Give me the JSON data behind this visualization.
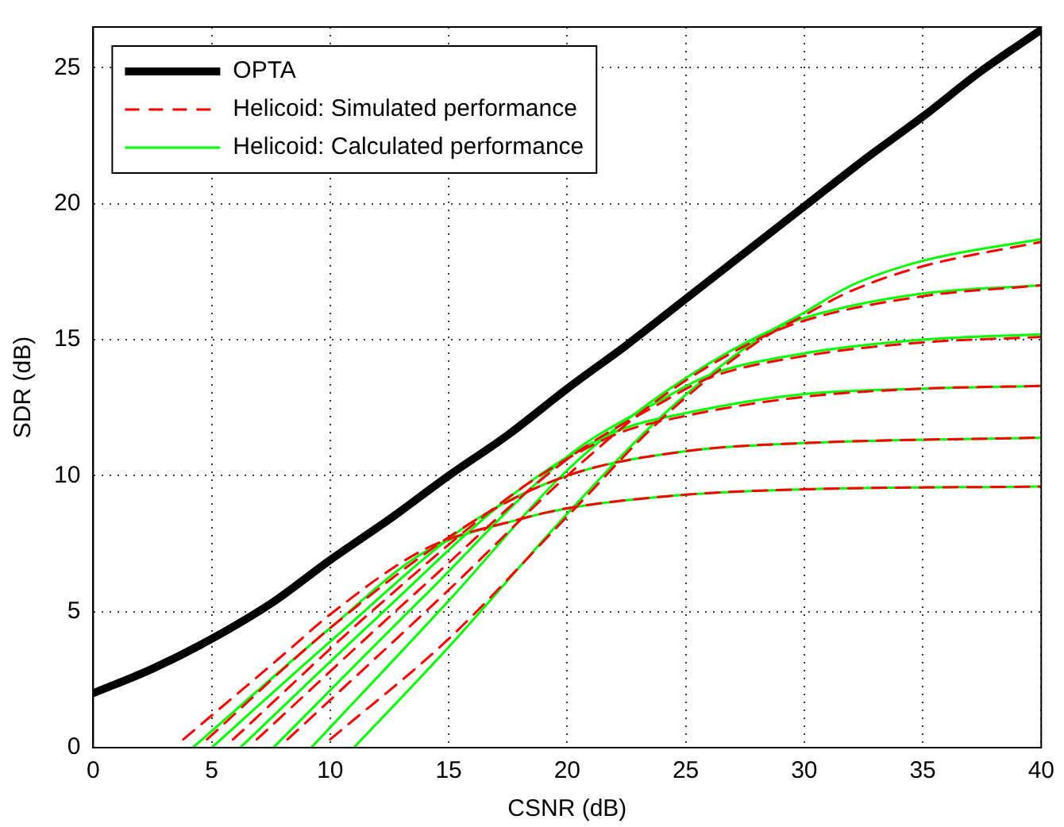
{
  "chart_data": {
    "type": "line",
    "xlabel": "CSNR (dB)",
    "ylabel": "SDR (dB)",
    "xlim": [
      0,
      40
    ],
    "xticks": [
      0,
      5,
      10,
      15,
      20,
      25,
      30,
      35,
      40
    ],
    "ylim": [
      0,
      26.5
    ],
    "yticks": [
      0,
      5,
      10,
      15,
      20,
      25
    ],
    "grid": true,
    "legend": "top left",
    "marker": "none",
    "series": [
      {
        "name": "OPTA",
        "color": "#000000",
        "x": [
          0,
          2.5,
          5,
          7.5,
          10,
          12.5,
          15,
          17.5,
          20,
          22.5,
          25,
          27.5,
          30,
          32.5,
          35,
          37.5,
          40
        ],
        "values": [
          2.0,
          2.9,
          4.0,
          5.3,
          6.9,
          8.4,
          10.0,
          11.5,
          13.2,
          14.8,
          16.5,
          18.2,
          19.9,
          21.6,
          23.2,
          24.9,
          26.4
        ]
      },
      {
        "name": "Helicoid: Simulated performance",
        "color": "#ff0000",
        "line_style": "dashed",
        "x": [
          3.8,
          8,
          10,
          14,
          18,
          20,
          25,
          30,
          40
        ],
        "values": [
          0.3,
          3.4,
          4.9,
          7.3,
          8.4,
          8.8,
          9.3,
          9.5,
          9.6
        ]
      },
      {
        "color": "#ff0000",
        "line_style": "dashed",
        "x": [
          4.8,
          10,
          16,
          20,
          25,
          30,
          40
        ],
        "values": [
          0.3,
          4.4,
          8.3,
          10.0,
          10.9,
          11.2,
          11.4
        ]
      },
      {
        "color": "#ff0000",
        "line_style": "dashed",
        "x": [
          5.9,
          12,
          18,
          22,
          25,
          30,
          35,
          40
        ],
        "values": [
          0.3,
          5.2,
          9.5,
          11.5,
          12.2,
          12.9,
          13.2,
          13.3
        ]
      },
      {
        "color": "#ff0000",
        "line_style": "dashed",
        "x": [
          6.9,
          14,
          20,
          24,
          26,
          30,
          35,
          40
        ],
        "values": [
          0.3,
          6.0,
          10.6,
          12.7,
          13.6,
          14.4,
          14.9,
          15.1
        ]
      },
      {
        "color": "#ff0000",
        "line_style": "dashed",
        "x": [
          8.2,
          15,
          20,
          24,
          28,
          30,
          35,
          40
        ],
        "values": [
          0.3,
          5.8,
          10.0,
          12.9,
          15.0,
          15.7,
          16.6,
          17.0
        ]
      },
      {
        "color": "#ff0000",
        "line_style": "dashed",
        "x": [
          10.0,
          15,
          20,
          24,
          28,
          30,
          32,
          35,
          40
        ],
        "values": [
          0.3,
          4.0,
          8.5,
          12.1,
          14.9,
          15.9,
          16.8,
          17.7,
          18.6
        ]
      },
      {
        "name": "Helicoid: Calculated performance",
        "color": "#00ff00",
        "x": [
          4.2,
          10,
          14,
          18,
          20,
          25,
          30,
          40
        ],
        "values": [
          0,
          4.4,
          7.2,
          8.4,
          8.8,
          9.3,
          9.5,
          9.6
        ]
      },
      {
        "color": "#00ff00",
        "x": [
          5.0,
          10,
          16,
          20,
          25,
          30,
          40
        ],
        "values": [
          0,
          3.9,
          8.3,
          10.0,
          10.9,
          11.2,
          11.4
        ]
      },
      {
        "color": "#00ff00",
        "x": [
          6.2,
          12,
          18,
          22,
          25,
          30,
          35,
          40
        ],
        "values": [
          0,
          4.8,
          9.5,
          11.6,
          12.3,
          13.0,
          13.2,
          13.3
        ]
      },
      {
        "color": "#00ff00",
        "x": [
          7.6,
          14,
          20,
          24,
          26,
          30,
          35,
          40
        ],
        "values": [
          0,
          5.6,
          10.7,
          12.8,
          13.7,
          14.5,
          15.0,
          15.2
        ]
      },
      {
        "color": "#00ff00",
        "x": [
          9.2,
          15,
          20,
          24,
          28,
          30,
          35,
          40
        ],
        "values": [
          0,
          5.4,
          10.2,
          13.0,
          15.1,
          15.8,
          16.7,
          17.0
        ]
      },
      {
        "color": "#00ff00",
        "x": [
          11.0,
          15,
          20,
          24,
          28,
          30,
          32,
          35,
          40
        ],
        "values": [
          0,
          3.7,
          8.6,
          12.2,
          15.0,
          16.0,
          17.0,
          17.9,
          18.7
        ]
      }
    ]
  }
}
